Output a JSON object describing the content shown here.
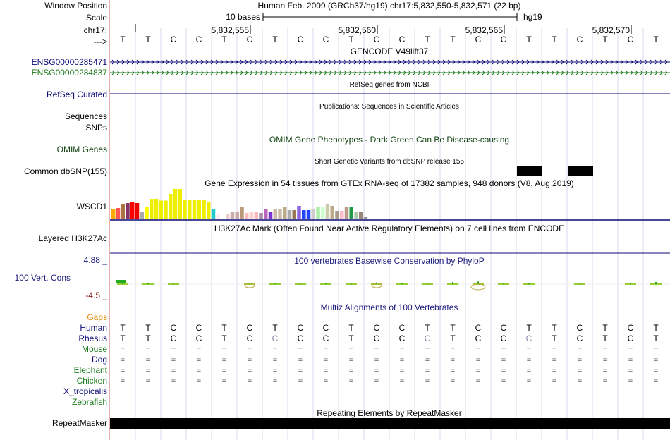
{
  "labels": {
    "window_position": "Window Position",
    "scale": "Scale",
    "chrom": "chr17:",
    "strand": "--->",
    "gene1": "ENSG00000285471",
    "gene2": "ENSG00000284837",
    "refseq": "RefSeq Curated",
    "sequences": "Sequences",
    "snps": "SNPs",
    "omim": "OMIM Genes",
    "dbsnp": "Common dbSNP(155)",
    "wscd1": "WSCD1",
    "h3k27ac": "Layered H3K27Ac",
    "cons_max": "4.88 _",
    "cons_label": "100 Vert. Cons",
    "cons_min": "-4.5 _",
    "gaps": "Gaps",
    "species": [
      "Human",
      "Rhesus",
      "Mouse",
      "Dog",
      "Elephant",
      "Chicken",
      "X_tropicalis",
      "Zebrafish"
    ],
    "repeatmasker": "RepeatMasker"
  },
  "header": {
    "position_text": "Human Feb. 2009 (GRCh37/hg19)   chr17:5,832,550-5,832,571 (22 bp)",
    "scale_text": "10 bases",
    "assembly": "hg19",
    "coords": [
      "5,832,555",
      "5,832,560",
      "5,832,565",
      "5,832,570"
    ]
  },
  "bases": [
    "T",
    "T",
    "C",
    "C",
    "T",
    "C",
    "T",
    "C",
    "C",
    "T",
    "C",
    "C",
    "T",
    "T",
    "C",
    "C",
    "T",
    "T",
    "C",
    "T",
    "C",
    "T"
  ],
  "track_titles": {
    "gencode": "GENCODE V49lift37",
    "refseq": "RefSeq genes from NCBI",
    "pubs": "Publications: Sequences in Scientific Articles",
    "omim": "OMIM Gene Phenotypes - Dark Green Can Be Disease-causing",
    "dbsnp": "Short Genetic Variants from dbSNP release 155",
    "gtex": "Gene Expression in 54 tissues from GTEx RNA-seq of 17382 samples, 948 donors (V8, Aug 2019)",
    "h3k27ac": "H3K27Ac Mark (Often Found Near Active Regulatory Elements) on 7 cell lines from ENCODE",
    "phylop": "100 vertebrates Basewise Conservation by PhyloP",
    "multiz": "Multiz Alignments of 100 Vertebrates",
    "rmsk": "Repeating Elements by RepeatMasker"
  },
  "alignment": {
    "human": [
      "T",
      "T",
      "C",
      "C",
      "T",
      "C",
      "T",
      "C",
      "C",
      "T",
      "C",
      "C",
      "T",
      "T",
      "C",
      "C",
      "T",
      "T",
      "C",
      "T",
      "C",
      "T"
    ],
    "rhesus": [
      "T",
      "T",
      "C",
      "C",
      "T",
      "C",
      "C",
      "C",
      "C",
      "T",
      "C",
      "C",
      "C",
      "T",
      "C",
      "C",
      "C",
      "T",
      "C",
      "T",
      "C",
      "T"
    ],
    "rhesus_diff": [
      6,
      12,
      16
    ],
    "eq_rows": [
      "Mouse",
      "Dog",
      "Elephant",
      "Chicken"
    ],
    "eq_symbol": "="
  },
  "gtex": {
    "values": [
      30,
      32,
      42,
      46,
      48,
      46,
      20,
      34,
      58,
      58,
      53,
      53,
      72,
      86,
      86,
      55,
      55,
      55,
      55,
      55,
      50,
      28,
      16,
      2,
      16,
      20,
      20,
      34,
      18,
      20,
      20,
      18,
      28,
      22,
      30,
      30,
      34,
      26,
      26,
      38,
      26,
      26,
      30,
      34,
      34,
      42,
      38,
      24,
      24,
      34,
      34,
      20,
      20,
      6
    ],
    "colors": [
      "#FFAA00",
      "#FF5555",
      "#AA7744",
      "#883366",
      "#FF0000",
      "#EE0000",
      "#AAAAAA",
      "#FFFF00",
      "#EEEE00",
      "#EEEE00",
      "#EEEE00",
      "#EEEE00",
      "#EEEE00",
      "#EEEE00",
      "#EEEE00",
      "#EEEE00",
      "#EEEE00",
      "#EEEE00",
      "#EEEE00",
      "#EEEE00",
      "#EEEE00",
      "#22CCCC",
      "#FFEEEE",
      "#FFDDCC",
      "#EECCCC",
      "#CCAAAA",
      "#CCAAAA",
      "#BB9977",
      "#FFBBBB",
      "#FFCCCC",
      "#FFBBBB",
      "#AA88AA",
      "#BB66BB",
      "#7733CC",
      "#CCBBAA",
      "#CCBBAA",
      "#BBAA88",
      "#AAAAAA",
      "#997755",
      "#8866DD",
      "#2244FF",
      "#2244FF",
      "#CCCCCC",
      "#AAEEAA",
      "#CCFFCC",
      "#CCCCAA",
      "#BBAA88",
      "#AA9988",
      "#FFBBCC",
      "#BB9988",
      "#229944",
      "#AACCAA",
      "#998877",
      "#999999"
    ]
  },
  "colors": {
    "gencode_dark": "#0c0c78",
    "gencode_green": "#1b7a1b",
    "omim": "#114411",
    "phylop_pos": "#1a1a7c",
    "phylop_neg": "#8b1a1a",
    "gaps": "#e08a00",
    "rhesus_diff": "#8888aa"
  }
}
